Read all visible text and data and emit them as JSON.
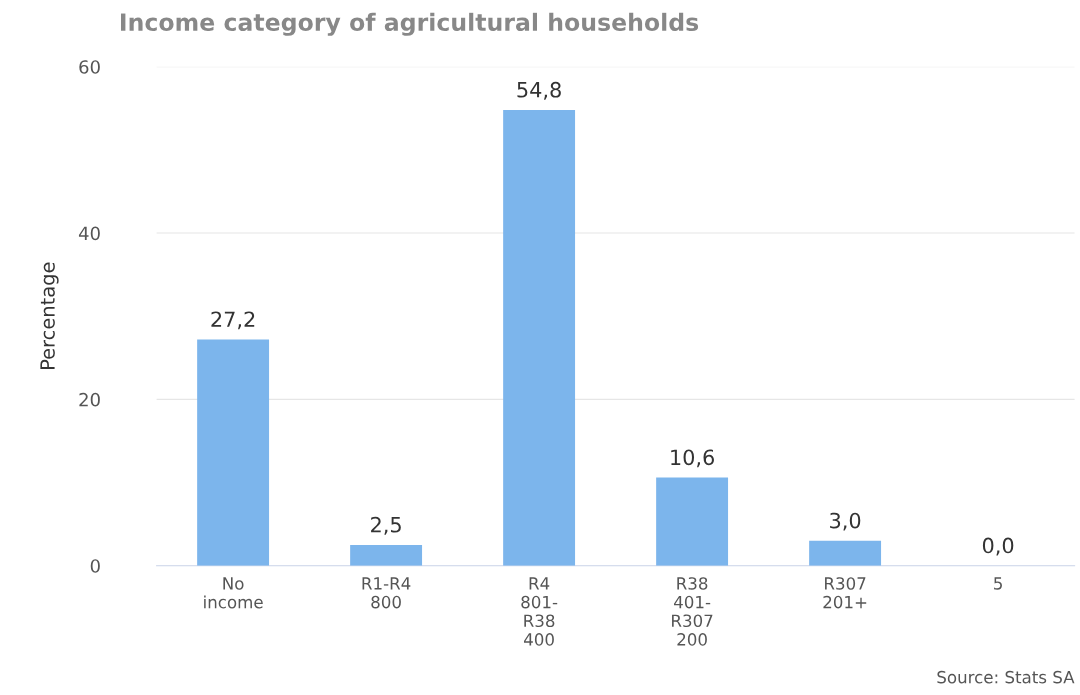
{
  "chart_data": {
    "type": "bar",
    "title": "Income category of agricultural households",
    "ylabel": "Percentage",
    "categories": [
      "No\nincome",
      "R1-R4\n800",
      "R4\n801-\nR38\n400",
      "R38\n401-\nR307\n200",
      "R307\n201+",
      "5"
    ],
    "values": [
      27.2,
      2.5,
      54.8,
      10.6,
      3.0,
      0.0
    ],
    "value_labels": [
      "27,2",
      "2,5",
      "54,8",
      "10,6",
      "3,0",
      "0,0"
    ],
    "color": "#7cb5ec",
    "ylim": [
      0,
      60
    ],
    "yticks": [
      0,
      20,
      40,
      60
    ],
    "grid": "y",
    "annotations": [
      "Source: Stats SA"
    ]
  }
}
